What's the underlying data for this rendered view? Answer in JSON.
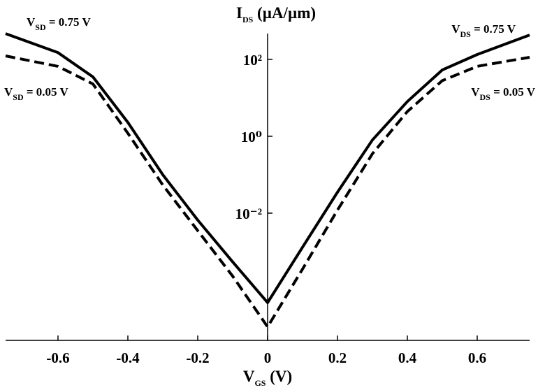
{
  "chart_data": {
    "type": "line",
    "title": {
      "main": "I",
      "sub": "DS",
      "rest": " (µA/µm)"
    },
    "xlabel": {
      "main": "V",
      "sub": "GS",
      "rest": " (V)"
    },
    "log_y": true,
    "xlim": [
      -0.75,
      0.75
    ],
    "ylim": [
      4.9e-06,
      470
    ],
    "xticks": [
      -0.6,
      -0.4,
      -0.2,
      0,
      0.2,
      0.4,
      0.6
    ],
    "yticks": [
      {
        "value": 100,
        "label": "10²"
      },
      {
        "value": 1,
        "label": "10⁰"
      },
      {
        "value": 0.01,
        "label": "10⁻²"
      }
    ],
    "x": [
      -0.75,
      -0.6,
      -0.5,
      -0.4,
      -0.3,
      -0.2,
      -0.1,
      0,
      0.1,
      0.2,
      0.3,
      0.4,
      0.5,
      0.6,
      0.75
    ],
    "series": [
      {
        "color": "#000000",
        "dashed": false,
        "values": [
          468,
          150,
          35,
          2.3,
          0.1,
          0.0066,
          0.00054,
          4.7e-05,
          0.0013,
          0.035,
          0.8,
          8,
          53,
          134,
          430
        ]
      },
      {
        "color": "#000000",
        "dashed": true,
        "values": [
          123,
          66,
          23,
          1.2,
          0.054,
          0.0035,
          0.00023,
          1.1e-05,
          0.00035,
          0.012,
          0.35,
          4.4,
          28,
          66,
          113
        ]
      }
    ],
    "annotations": [
      {
        "main": "V",
        "sub": "SD",
        "rest": " = 0.75 V"
      },
      {
        "main": "V",
        "sub": "SD",
        "rest": " = 0.05 V"
      },
      {
        "main": "V",
        "sub": "DS",
        "rest": " = 0.75 V"
      },
      {
        "main": "V",
        "sub": "DS",
        "rest": " = 0.05 V"
      }
    ]
  }
}
